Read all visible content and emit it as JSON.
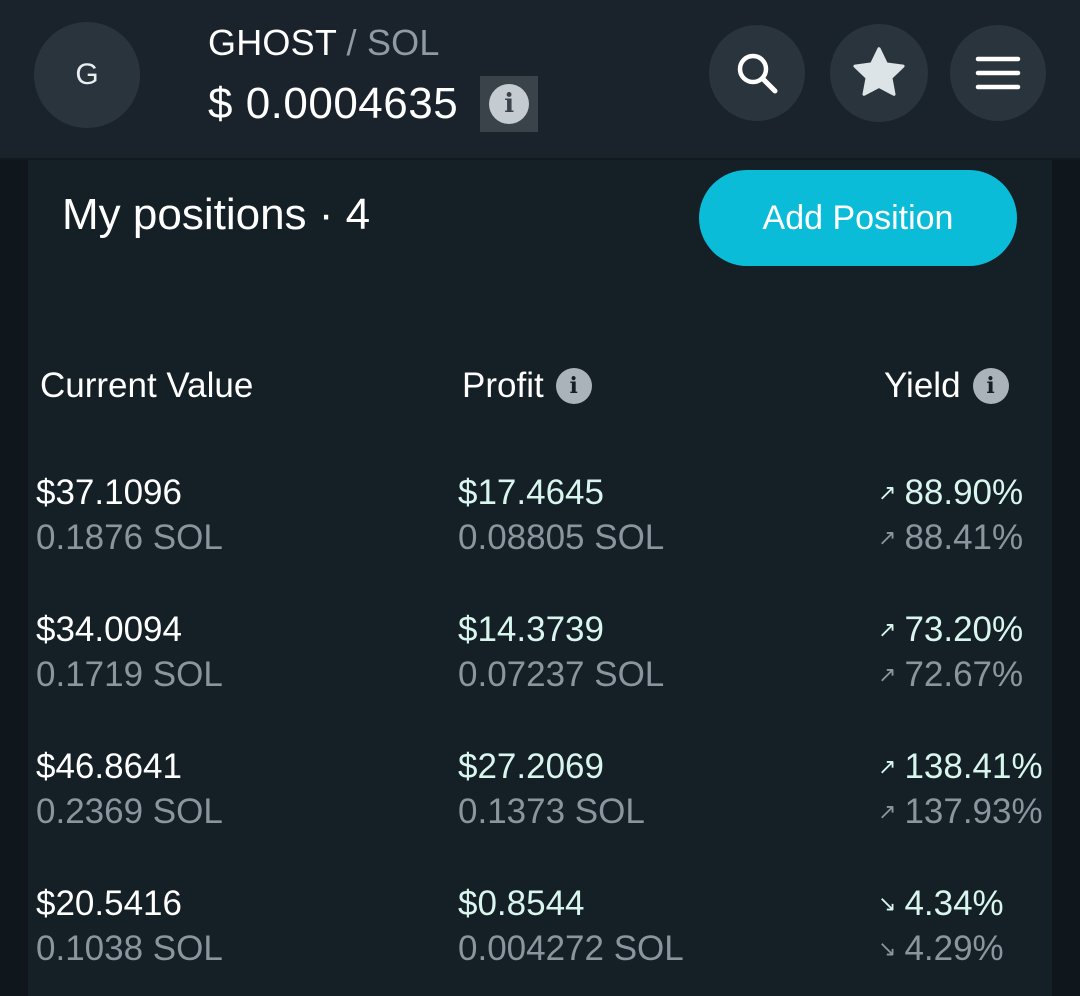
{
  "header": {
    "avatar_letter": "G",
    "pair_base": "GHOST",
    "pair_sep": " / ",
    "pair_quote": "SOL",
    "price": "$ 0.0004635",
    "info_glyph": "i"
  },
  "icons": {
    "search": "search-icon",
    "star": "star-icon",
    "menu": "menu-icon",
    "info": "info-icon",
    "arrow_up": "arrow-up-right-icon",
    "arrow_down": "arrow-down-right-icon"
  },
  "positions": {
    "title": "My positions · 4",
    "add_button": "Add Position",
    "columns": {
      "current_value": "Current Value",
      "profit": "Profit",
      "yield": "Yield"
    },
    "rows": [
      {
        "usd": "$37.1096",
        "sol": "0.1876 SOL",
        "profit_usd": "$17.4645",
        "profit_sol": "0.08805 SOL",
        "yield1": "88.90%",
        "yield2": "88.41%",
        "dir1": "↗",
        "dir2": "↗"
      },
      {
        "usd": "$34.0094",
        "sol": "0.1719 SOL",
        "profit_usd": "$14.3739",
        "profit_sol": "0.07237 SOL",
        "yield1": "73.20%",
        "yield2": "72.67%",
        "dir1": "↗",
        "dir2": "↗"
      },
      {
        "usd": "$46.8641",
        "sol": "0.2369 SOL",
        "profit_usd": "$27.2069",
        "profit_sol": "0.1373 SOL",
        "yield1": "138.41%",
        "yield2": "137.93%",
        "dir1": "↗",
        "dir2": "↗"
      },
      {
        "usd": "$20.5416",
        "sol": "0.1038 SOL",
        "profit_usd": "$0.8544",
        "profit_sol": "0.004272 SOL",
        "yield1": "4.34%",
        "yield2": "4.29%",
        "dir1": "↘",
        "dir2": "↘"
      }
    ]
  },
  "colors": {
    "accent": "#0bbcd9",
    "background": "#0f171d",
    "header_bg": "#1a232b",
    "card_bg": "#151f26",
    "profit_text": "#d8f6ee",
    "muted_text": "#8a969d"
  }
}
